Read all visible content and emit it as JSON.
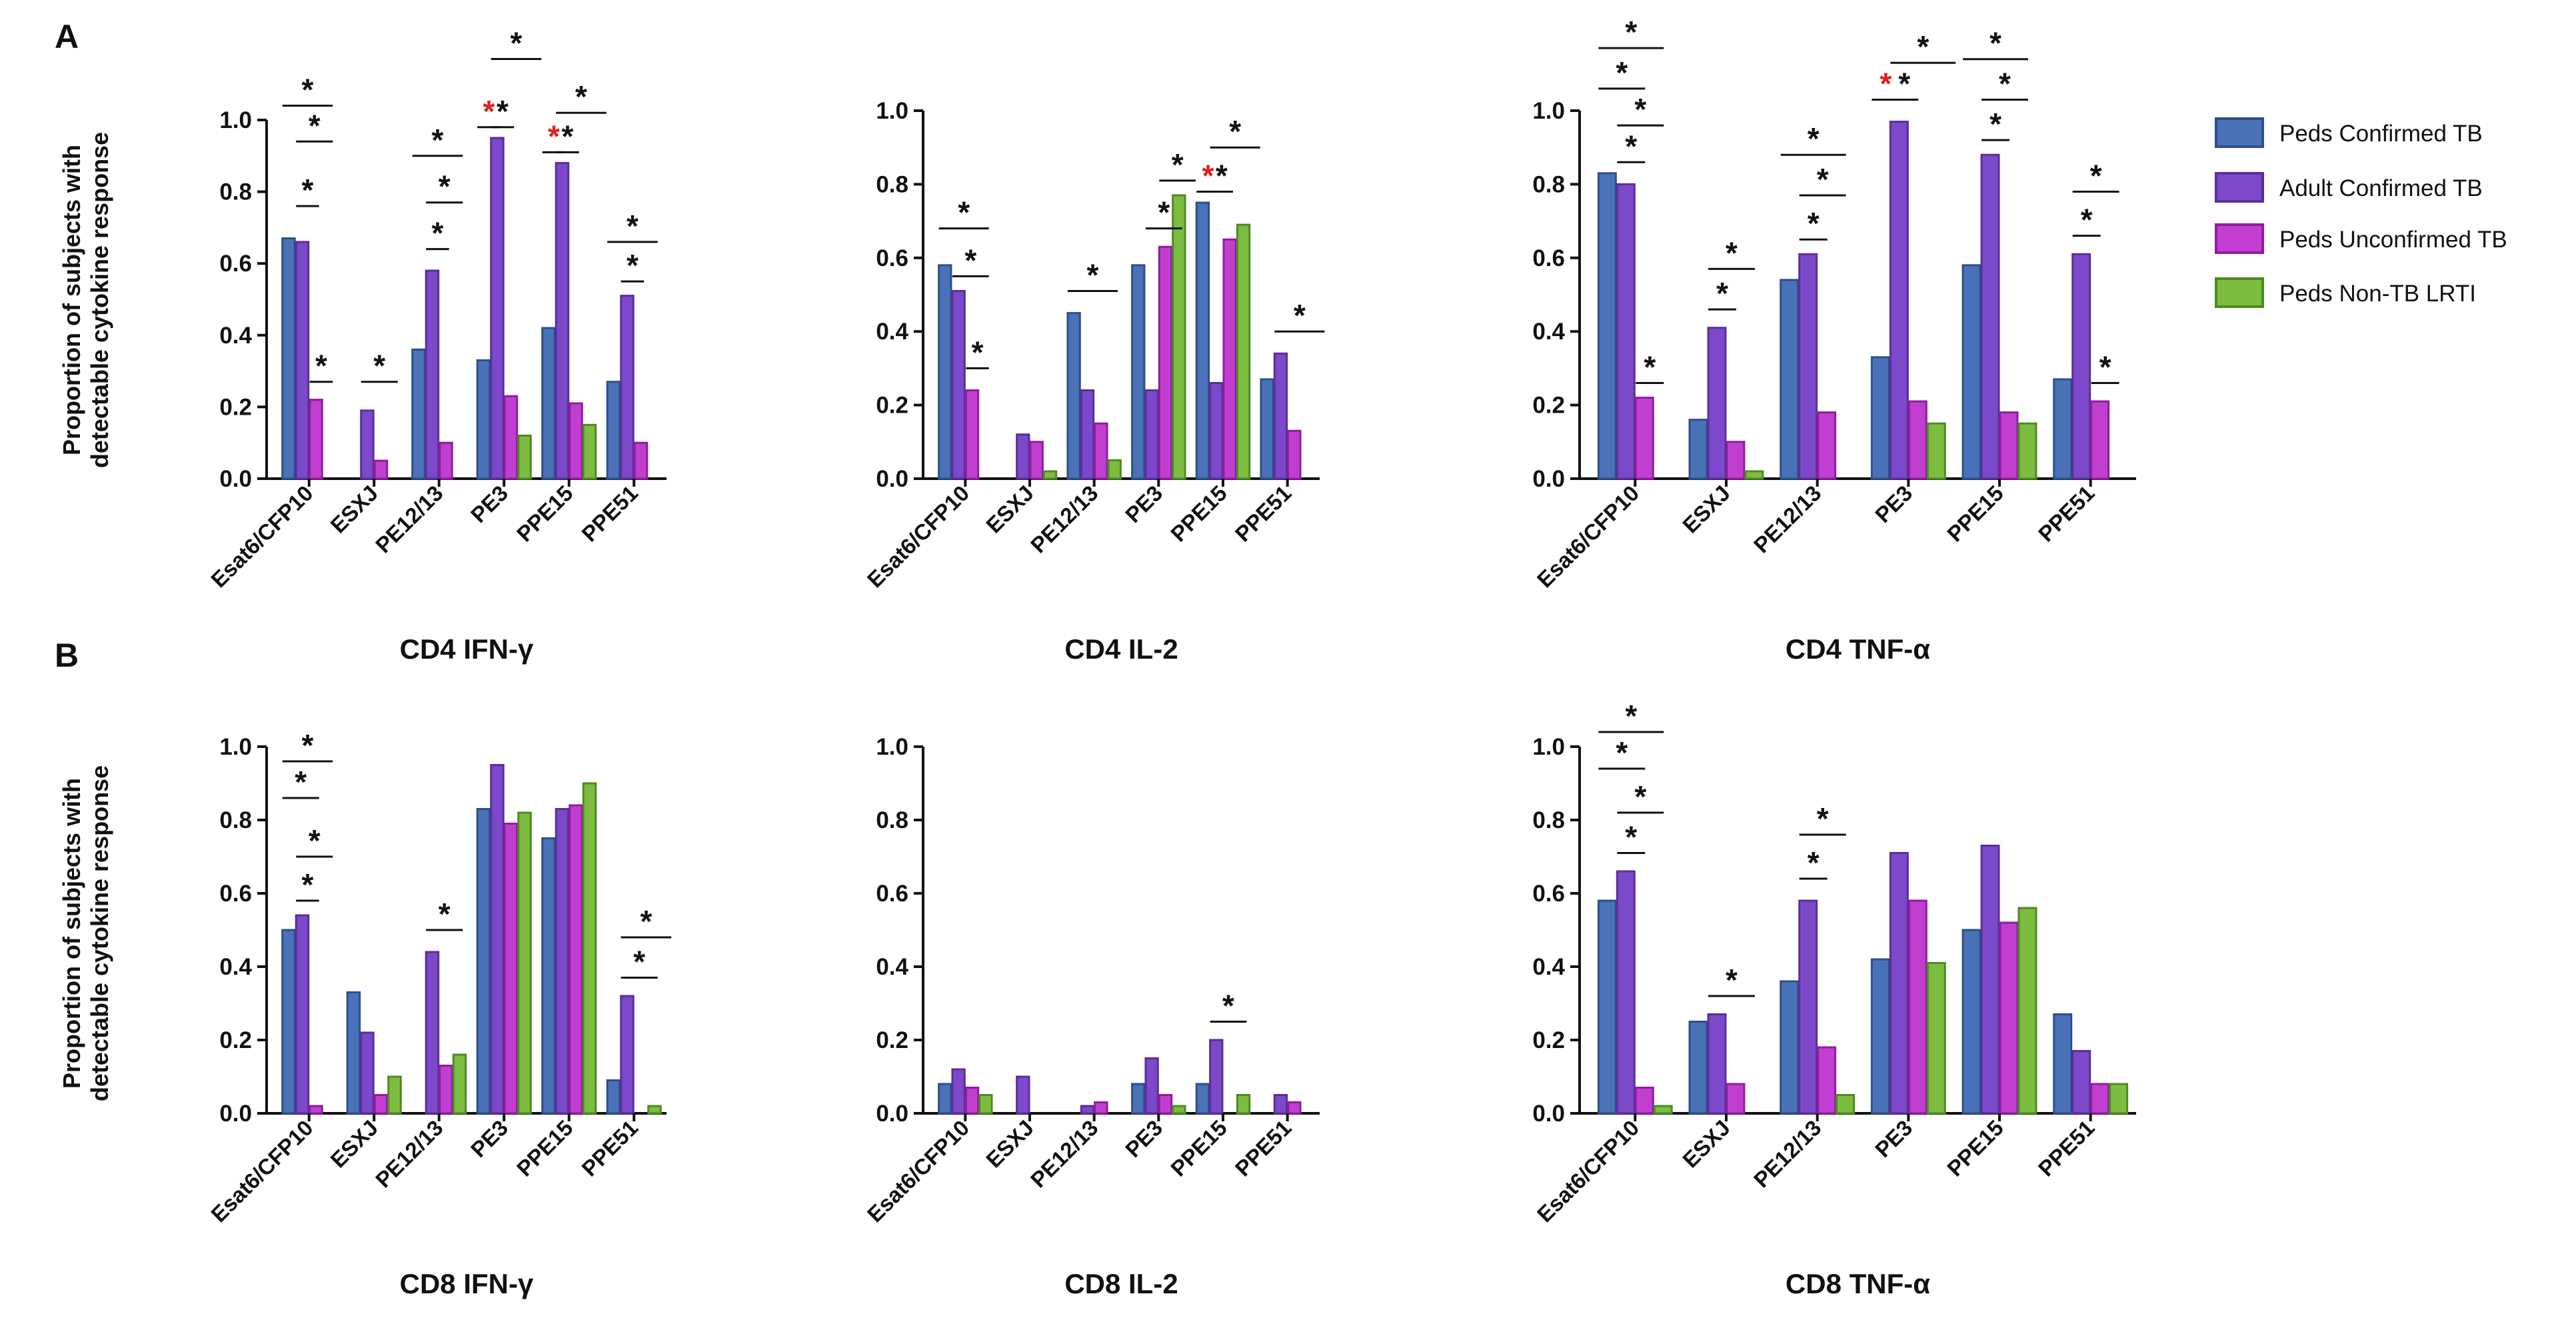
{
  "panels": {
    "a": "A",
    "b": "B"
  },
  "y_axis_label": [
    "Proportion of subjects with",
    "detectable cytokine response"
  ],
  "legend": [
    {
      "name": "Peds Confirmed TB",
      "color": "#4a72b8",
      "border": "#2e4f8a"
    },
    {
      "name": "Adult Confirmed TB",
      "color": "#7b49c9",
      "border": "#5a2f9c"
    },
    {
      "name": "Peds Unconfirmed TB",
      "color": "#c23ed1",
      "border": "#8d1e9c"
    },
    {
      "name": "Peds Non-TB LRTI",
      "color": "#7cbc3f",
      "border": "#4e8a24"
    }
  ],
  "chart_data": [
    {
      "type": "bar",
      "title": "CD4 IFN-γ",
      "ylim": [
        0,
        1.0
      ],
      "yticks": [
        "0.0",
        "0.2",
        "0.4",
        "0.6",
        "0.8",
        "1.0"
      ],
      "categories": [
        "Esat6/CFP10",
        "ESXJ",
        "PE12/13",
        "PE3",
        "PPE15",
        "PPE51"
      ],
      "series": [
        {
          "name": "Peds Confirmed TB",
          "values": [
            0.67,
            0.0,
            0.36,
            0.33,
            0.42,
            0.27
          ]
        },
        {
          "name": "Adult Confirmed TB",
          "values": [
            0.66,
            0.19,
            0.58,
            0.95,
            0.88,
            0.51
          ]
        },
        {
          "name": "Peds Unconfirmed TB",
          "values": [
            0.22,
            0.05,
            0.1,
            0.23,
            0.21,
            0.1
          ]
        },
        {
          "name": "Peds Non-TB LRTI",
          "values": [
            0.0,
            0.0,
            0.0,
            0.12,
            0.15,
            0.0
          ]
        }
      ],
      "significance": [
        {
          "category": 0,
          "from": 0,
          "to": 2,
          "level": 1.04,
          "red": false
        },
        {
          "category": 0,
          "from": 1,
          "to": 2,
          "level": 0.94,
          "red": false
        },
        {
          "category": 0,
          "from": 1,
          "to": 1,
          "level": 0.76,
          "red": false
        },
        {
          "category": 0,
          "from": 2,
          "to": 2,
          "level": 0.27,
          "red": false
        },
        {
          "category": 1,
          "from": 1,
          "to": 2,
          "level": 0.27,
          "red": false
        },
        {
          "category": 2,
          "from": 0,
          "to": 2,
          "level": 0.9,
          "red": false
        },
        {
          "category": 2,
          "from": 1,
          "to": 2,
          "level": 0.77,
          "red": false
        },
        {
          "category": 2,
          "from": 1,
          "to": 1,
          "level": 0.64,
          "red": false
        },
        {
          "category": 3,
          "from": 0,
          "to": 0,
          "level": 0.98,
          "red": true
        },
        {
          "category": 3,
          "from": 1,
          "to": 1,
          "level": 0.98,
          "red": false
        },
        {
          "category": 3,
          "from": 1,
          "to": 3,
          "level": 1.17,
          "red": false
        },
        {
          "category": 4,
          "from": 0,
          "to": 0,
          "level": 0.91,
          "red": true
        },
        {
          "category": 4,
          "from": 1,
          "to": 1,
          "level": 0.91,
          "red": false
        },
        {
          "category": 4,
          "from": 1,
          "to": 3,
          "level": 1.02,
          "red": false
        },
        {
          "category": 5,
          "from": 0,
          "to": 2,
          "level": 0.66,
          "red": false
        },
        {
          "category": 5,
          "from": 1,
          "to": 1,
          "level": 0.55,
          "red": false
        }
      ]
    },
    {
      "type": "bar",
      "title": "CD4 IL-2",
      "ylim": [
        0,
        1.0
      ],
      "yticks": [
        "0.0",
        "0.2",
        "0.4",
        "0.6",
        "0.8",
        "1.0"
      ],
      "categories": [
        "Esat6/CFP10",
        "ESXJ",
        "PE12/13",
        "PE3",
        "PPE15",
        "PPE51"
      ],
      "series": [
        {
          "name": "Peds Confirmed TB",
          "values": [
            0.58,
            0.0,
            0.45,
            0.58,
            0.75,
            0.27
          ]
        },
        {
          "name": "Adult Confirmed TB",
          "values": [
            0.51,
            0.12,
            0.24,
            0.24,
            0.26,
            0.34
          ]
        },
        {
          "name": "Peds Unconfirmed TB",
          "values": [
            0.24,
            0.1,
            0.15,
            0.63,
            0.65,
            0.13
          ]
        },
        {
          "name": "Peds Non-TB LRTI",
          "values": [
            0.0,
            0.02,
            0.05,
            0.77,
            0.69,
            0.0
          ]
        }
      ],
      "significance": [
        {
          "category": 0,
          "from": 0,
          "to": 2,
          "level": 0.68,
          "red": false
        },
        {
          "category": 0,
          "from": 1,
          "to": 2,
          "level": 0.55,
          "red": false
        },
        {
          "category": 0,
          "from": 2,
          "to": 2,
          "level": 0.3,
          "red": false
        },
        {
          "category": 2,
          "from": 0,
          "to": 2,
          "level": 0.51,
          "red": false
        },
        {
          "category": 3,
          "from": 1,
          "to": 2,
          "level": 0.68,
          "red": false
        },
        {
          "category": 3,
          "from": 2,
          "to": 3,
          "level": 0.81,
          "red": false
        },
        {
          "category": 4,
          "from": 0,
          "to": 0,
          "level": 0.78,
          "red": true
        },
        {
          "category": 4,
          "from": 1,
          "to": 1,
          "level": 0.78,
          "red": false
        },
        {
          "category": 4,
          "from": 1,
          "to": 3,
          "level": 0.9,
          "red": false
        },
        {
          "category": 5,
          "from": 1,
          "to": 3,
          "level": 0.4,
          "red": false
        }
      ]
    },
    {
      "type": "bar",
      "title": "CD4 TNF-α",
      "ylim": [
        0,
        1.0
      ],
      "yticks": [
        "0.0",
        "0.2",
        "0.4",
        "0.6",
        "0.8",
        "1.0"
      ],
      "categories": [
        "Esat6/CFP10",
        "ESXJ",
        "PE12/13",
        "PE3",
        "PPE15",
        "PPE51"
      ],
      "series": [
        {
          "name": "Peds Confirmed TB",
          "values": [
            0.83,
            0.16,
            0.54,
            0.33,
            0.58,
            0.27
          ]
        },
        {
          "name": "Adult Confirmed TB",
          "values": [
            0.8,
            0.41,
            0.61,
            0.97,
            0.88,
            0.61
          ]
        },
        {
          "name": "Peds Unconfirmed TB",
          "values": [
            0.22,
            0.1,
            0.18,
            0.21,
            0.18,
            0.21
          ]
        },
        {
          "name": "Peds Non-TB LRTI",
          "values": [
            0.0,
            0.02,
            0.0,
            0.15,
            0.15,
            0.0
          ]
        }
      ],
      "significance": [
        {
          "category": 0,
          "from": 0,
          "to": 2,
          "level": 1.17,
          "red": false
        },
        {
          "category": 0,
          "from": 0,
          "to": 1,
          "level": 1.06,
          "red": false
        },
        {
          "category": 0,
          "from": 1,
          "to": 2,
          "level": 0.96,
          "red": false
        },
        {
          "category": 0,
          "from": 1,
          "to": 1,
          "level": 0.86,
          "red": false
        },
        {
          "category": 0,
          "from": 2,
          "to": 2,
          "level": 0.26,
          "red": false
        },
        {
          "category": 1,
          "from": 1,
          "to": 2,
          "level": 0.57,
          "red": false
        },
        {
          "category": 1,
          "from": 1,
          "to": 1,
          "level": 0.46,
          "red": false
        },
        {
          "category": 2,
          "from": 0,
          "to": 2,
          "level": 0.88,
          "red": false
        },
        {
          "category": 2,
          "from": 1,
          "to": 2,
          "level": 0.77,
          "red": false
        },
        {
          "category": 2,
          "from": 1,
          "to": 1,
          "level": 0.65,
          "red": false
        },
        {
          "category": 3,
          "from": 0,
          "to": 0,
          "level": 1.03,
          "red": true
        },
        {
          "category": 3,
          "from": 1,
          "to": 1,
          "level": 1.03,
          "red": false
        },
        {
          "category": 3,
          "from": 1,
          "to": 3,
          "level": 1.13,
          "red": false
        },
        {
          "category": 4,
          "from": 0,
          "to": 2,
          "level": 1.14,
          "red": false
        },
        {
          "category": 4,
          "from": 1,
          "to": 2,
          "level": 1.03,
          "red": false
        },
        {
          "category": 4,
          "from": 1,
          "to": 1,
          "level": 0.92,
          "red": false
        },
        {
          "category": 5,
          "from": 1,
          "to": 2,
          "level": 0.78,
          "red": false
        },
        {
          "category": 5,
          "from": 1,
          "to": 1,
          "level": 0.66,
          "red": false
        },
        {
          "category": 5,
          "from": 2,
          "to": 2,
          "level": 0.26,
          "red": false
        }
      ]
    },
    {
      "type": "bar",
      "title": "CD8 IFN-γ",
      "ylim": [
        0,
        1.0
      ],
      "yticks": [
        "0.0",
        "0.2",
        "0.4",
        "0.6",
        "0.8",
        "1.0"
      ],
      "categories": [
        "Esat6/CFP10",
        "ESXJ",
        "PE12/13",
        "PE3",
        "PPE15",
        "PPE51"
      ],
      "series": [
        {
          "name": "Peds Confirmed TB",
          "values": [
            0.5,
            0.33,
            0.0,
            0.83,
            0.75,
            0.09
          ]
        },
        {
          "name": "Adult Confirmed TB",
          "values": [
            0.54,
            0.22,
            0.44,
            0.95,
            0.83,
            0.32
          ]
        },
        {
          "name": "Peds Unconfirmed TB",
          "values": [
            0.02,
            0.05,
            0.13,
            0.79,
            0.84,
            0.0
          ]
        },
        {
          "name": "Peds Non-TB LRTI",
          "values": [
            0.0,
            0.1,
            0.16,
            0.82,
            0.9,
            0.02
          ]
        }
      ],
      "significance": [
        {
          "category": 0,
          "from": 0,
          "to": 2,
          "level": 0.96,
          "red": false
        },
        {
          "category": 0,
          "from": 0,
          "to": 1,
          "level": 0.86,
          "red": false
        },
        {
          "category": 0,
          "from": 1,
          "to": 2,
          "level": 0.7,
          "red": false
        },
        {
          "category": 0,
          "from": 1,
          "to": 1,
          "level": 0.58,
          "red": false
        },
        {
          "category": 2,
          "from": 1,
          "to": 2,
          "level": 0.5,
          "red": false
        },
        {
          "category": 5,
          "from": 1,
          "to": 3,
          "level": 0.48,
          "red": false
        },
        {
          "category": 5,
          "from": 1,
          "to": 2,
          "level": 0.37,
          "red": false
        }
      ]
    },
    {
      "type": "bar",
      "title": "CD8 IL-2",
      "ylim": [
        0,
        1.0
      ],
      "yticks": [
        "0.0",
        "0.2",
        "0.4",
        "0.6",
        "0.8",
        "1.0"
      ],
      "categories": [
        "Esat6/CFP10",
        "ESXJ",
        "PE12/13",
        "PE3",
        "PPE15",
        "PPE51"
      ],
      "series": [
        {
          "name": "Peds Confirmed TB",
          "values": [
            0.08,
            0.0,
            0.0,
            0.08,
            0.08,
            0.0
          ]
        },
        {
          "name": "Adult Confirmed TB",
          "values": [
            0.12,
            0.1,
            0.02,
            0.15,
            0.2,
            0.05
          ]
        },
        {
          "name": "Peds Unconfirmed TB",
          "values": [
            0.07,
            0.0,
            0.03,
            0.05,
            0.0,
            0.03
          ]
        },
        {
          "name": "Peds Non-TB LRTI",
          "values": [
            0.05,
            0.0,
            0.0,
            0.02,
            0.05,
            0.0
          ]
        }
      ],
      "significance": [
        {
          "category": 4,
          "from": 1,
          "to": 2,
          "level": 0.25,
          "red": false
        }
      ]
    },
    {
      "type": "bar",
      "title": "CD8 TNF-α",
      "ylim": [
        0,
        1.0
      ],
      "yticks": [
        "0.0",
        "0.2",
        "0.4",
        "0.6",
        "0.8",
        "1.0"
      ],
      "categories": [
        "Esat6/CFP10",
        "ESXJ",
        "PE12/13",
        "PE3",
        "PPE15",
        "PPE51"
      ],
      "series": [
        {
          "name": "Peds Confirmed TB",
          "values": [
            0.58,
            0.25,
            0.36,
            0.42,
            0.5,
            0.27
          ]
        },
        {
          "name": "Adult Confirmed TB",
          "values": [
            0.66,
            0.27,
            0.58,
            0.71,
            0.73,
            0.17
          ]
        },
        {
          "name": "Peds Unconfirmed TB",
          "values": [
            0.07,
            0.08,
            0.18,
            0.58,
            0.52,
            0.08
          ]
        },
        {
          "name": "Peds Non-TB LRTI",
          "values": [
            0.02,
            0.0,
            0.05,
            0.41,
            0.56,
            0.08
          ]
        }
      ],
      "significance": [
        {
          "category": 0,
          "from": 0,
          "to": 2,
          "level": 1.04,
          "red": false
        },
        {
          "category": 0,
          "from": 0,
          "to": 1,
          "level": 0.94,
          "red": false
        },
        {
          "category": 0,
          "from": 1,
          "to": 2,
          "level": 0.82,
          "red": false
        },
        {
          "category": 0,
          "from": 1,
          "to": 1,
          "level": 0.71,
          "red": false
        },
        {
          "category": 1,
          "from": 1,
          "to": 2,
          "level": 0.32,
          "red": false
        },
        {
          "category": 2,
          "from": 1,
          "to": 2,
          "level": 0.76,
          "red": false
        },
        {
          "category": 2,
          "from": 1,
          "to": 1,
          "level": 0.64,
          "red": false
        }
      ]
    }
  ]
}
